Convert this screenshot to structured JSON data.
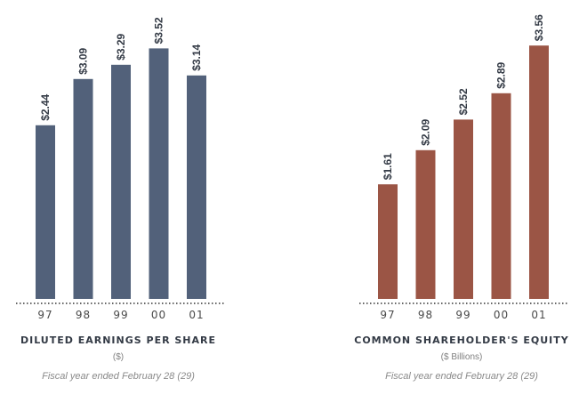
{
  "chart_data": [
    {
      "type": "bar",
      "title": "DILUTED EARNINGS PER SHARE",
      "subtitle": "($)",
      "note": "Fiscal year ended February 28 (29)",
      "categories": [
        "97",
        "98",
        "99",
        "00",
        "01"
      ],
      "values": [
        2.44,
        3.09,
        3.29,
        3.52,
        3.14
      ],
      "data_labels": [
        "$2.44",
        "$3.09",
        "$3.29",
        "$3.52",
        "$3.14"
      ],
      "ylim": [
        0,
        3.6
      ],
      "grid": false,
      "color": "#52617a"
    },
    {
      "type": "bar",
      "title": "COMMON SHAREHOLDER'S EQUITY",
      "subtitle": "($ Billions)",
      "note": "Fiscal year ended February 28 (29)",
      "categories": [
        "97",
        "98",
        "99",
        "00",
        "01"
      ],
      "values": [
        1.61,
        2.09,
        2.52,
        2.89,
        3.56
      ],
      "data_labels": [
        "$1.61",
        "$2.09",
        "$2.52",
        "$2.89",
        "$3.56"
      ],
      "ylim": [
        0,
        3.6
      ],
      "grid": false,
      "color": "#9b5545"
    }
  ]
}
